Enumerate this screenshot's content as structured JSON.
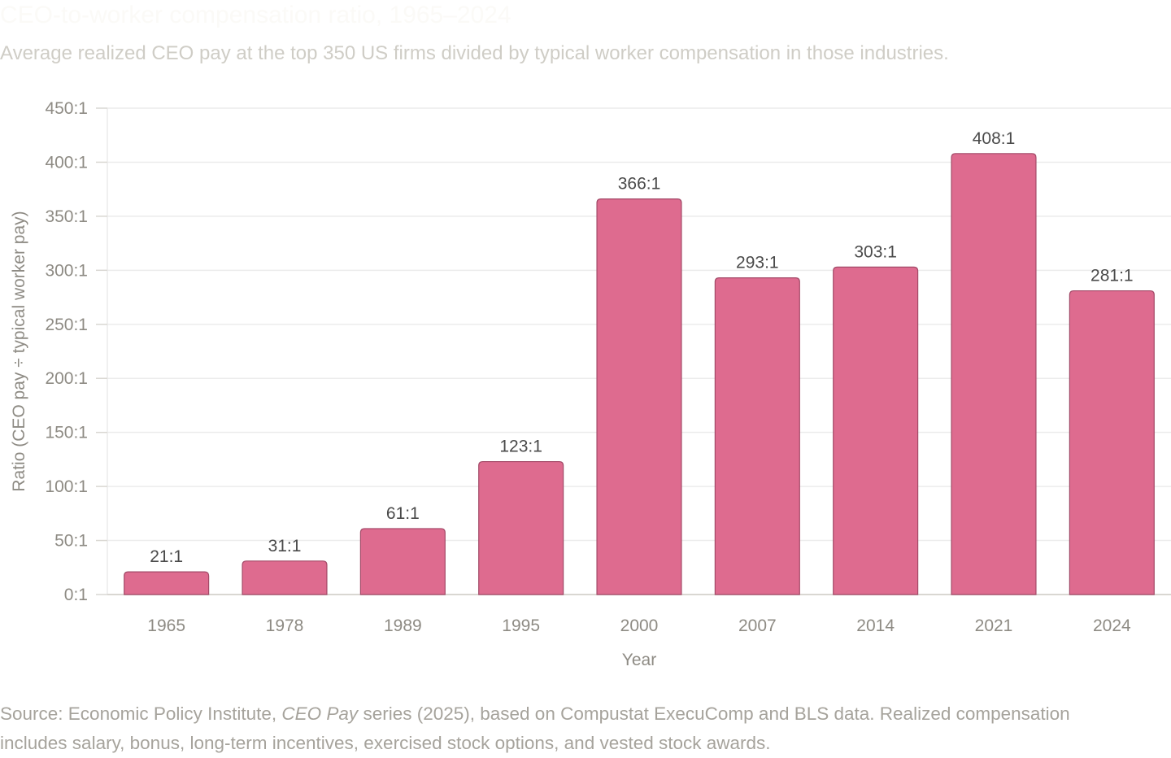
{
  "header": {
    "title": "CEO-to-worker compensation ratio, 1965–2024",
    "subtitle": "Average realized CEO pay at the top 350 US firms divided by typical worker compensation in those industries."
  },
  "footer": {
    "prefix": "Source: Economic Policy Institute, ",
    "italic": "CEO Pay",
    "suffix": " series (2025), based on Compustat ExecuComp and BLS data. Realized compensation includes salary, bonus, long-term incentives, exercised stock options, and vested stock awards."
  },
  "colors": {
    "bar_fill": "#de6b8f",
    "bar_stroke": "#a34a68",
    "grid": "#ececec",
    "axis": "#d9d7d2"
  },
  "chart_data": {
    "type": "bar",
    "title": "CEO-to-worker compensation ratio, 1965–2024",
    "xlabel": "Year",
    "ylabel": "Ratio (CEO pay ÷ typical worker pay)",
    "categories": [
      "1965",
      "1978",
      "1989",
      "1995",
      "2000",
      "2007",
      "2014",
      "2021",
      "2024"
    ],
    "values": [
      21,
      31,
      61,
      123,
      366,
      293,
      303,
      408,
      281
    ],
    "data_labels": [
      "21:1",
      "31:1",
      "61:1",
      "123:1",
      "366:1",
      "293:1",
      "303:1",
      "408:1",
      "281:1"
    ],
    "ylim": [
      0,
      450
    ],
    "yticks": [
      0,
      50,
      100,
      150,
      200,
      250,
      300,
      350,
      400,
      450
    ],
    "ytick_labels": [
      "0:1",
      "50:1",
      "100:1",
      "150:1",
      "200:1",
      "250:1",
      "300:1",
      "350:1",
      "400:1",
      "450:1"
    ],
    "grid": true,
    "legend": "none"
  }
}
